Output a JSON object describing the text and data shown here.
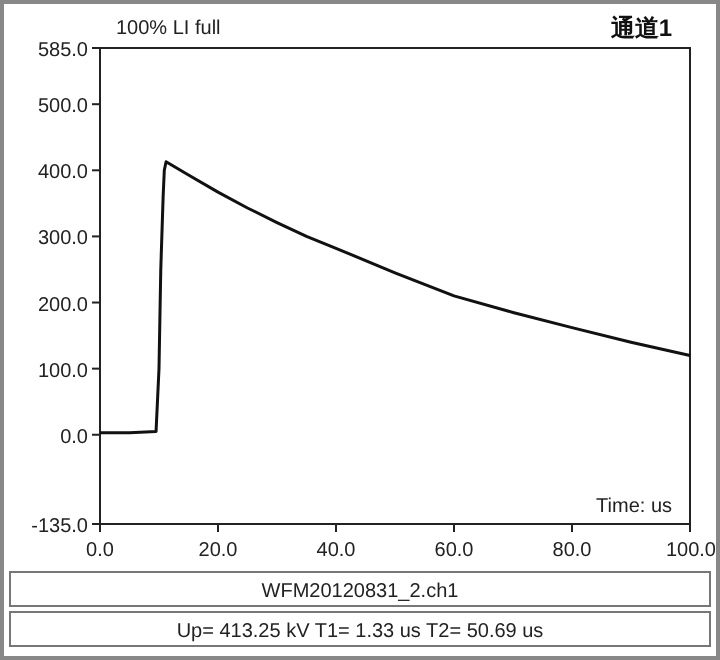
{
  "chart_data": {
    "type": "line",
    "title": "100% LI full",
    "subtitle": "通道1",
    "xlabel": "Time: us",
    "annotations": [
      "WFM20120831_2.ch1",
      "Up= 413.25 kV  T1= 1.33 us  T2= 50.69 us"
    ],
    "x": [
      0,
      5,
      9.5,
      10,
      10.3,
      10.7,
      10.9,
      11.2,
      15,
      20,
      25,
      30,
      35,
      40,
      50,
      60,
      70,
      80,
      90,
      100
    ],
    "series": [
      {
        "color": "#111111",
        "values": [
          3,
          3,
          5,
          100,
          250,
          360,
          400,
          413,
          393,
          367,
          343,
          321,
          300,
          282,
          245,
          210,
          185,
          162,
          140,
          120
        ]
      }
    ],
    "xlim": [
      0,
      100
    ],
    "ylim": [
      -135,
      585
    ],
    "xticks": [
      {
        "value": 0,
        "label": "0.0"
      },
      {
        "value": 20,
        "label": "20.0"
      },
      {
        "value": 40,
        "label": "40.0"
      },
      {
        "value": 60,
        "label": "60.0"
      },
      {
        "value": 80,
        "label": "80.0"
      },
      {
        "value": 100,
        "label": "100.0"
      }
    ],
    "yticks": [
      {
        "value": -135,
        "label": "-135.0"
      },
      {
        "value": 0,
        "label": "0.0"
      },
      {
        "value": 100,
        "label": "100.0"
      },
      {
        "value": 200,
        "label": "200.0"
      },
      {
        "value": 300,
        "label": "300.0"
      },
      {
        "value": 400,
        "label": "400.0"
      },
      {
        "value": 500,
        "label": "500.0"
      },
      {
        "value": 585,
        "label": "585.0"
      }
    ]
  }
}
